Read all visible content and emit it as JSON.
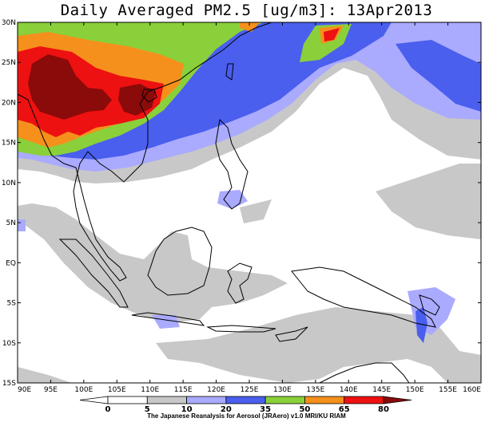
{
  "title": "Daily Averaged PM2.5 [ug/m3]: 13Apr2013",
  "credit": "The Japanese Reanalysis for Aerosol (JRAero) v1.0 MRI/KU RIAM",
  "lat_labels": [
    "30N",
    "25N",
    "20N",
    "15N",
    "10N",
    "5N",
    "EQ",
    "5S",
    "10S",
    "15S"
  ],
  "lon_labels": [
    "90E",
    "95E",
    "100E",
    "105E",
    "110E",
    "115E",
    "120E",
    "125E",
    "130E",
    "135E",
    "140E",
    "145E",
    "150E",
    "155E",
    "160E"
  ],
  "colorbar": {
    "ticks": [
      "0",
      "5",
      "10",
      "20",
      "35",
      "50",
      "65",
      "80"
    ],
    "colors": [
      "#ffffff",
      "#ffffff",
      "#c8c8c8",
      "#aaaaff",
      "#4a5fee",
      "#8ad03a",
      "#f5901c",
      "#ee1111",
      "#8b0a0a"
    ]
  }
}
